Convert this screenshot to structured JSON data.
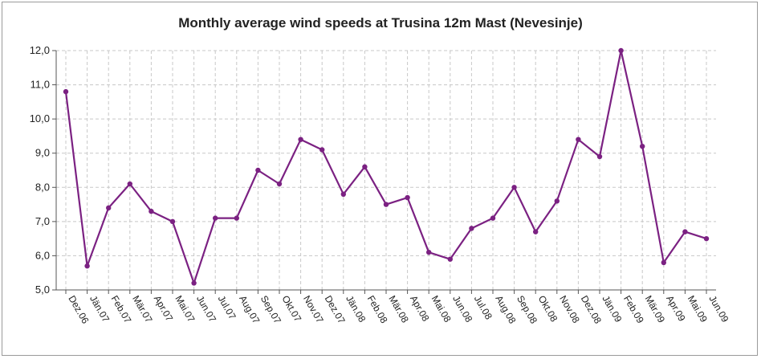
{
  "chart_data": {
    "type": "line",
    "title": "Monthly average wind speeds at Trusina 12m Mast (Nevesinje)",
    "xlabel": "",
    "ylabel": "",
    "ylim": [
      5.0,
      12.0
    ],
    "yticks": [
      "5,0",
      "6,0",
      "7,0",
      "8,0",
      "9,0",
      "10,0",
      "11,0",
      "12,0"
    ],
    "categories": [
      "Dez.06",
      "Jän.07",
      "Feb.07",
      "Mär.07",
      "Apr.07",
      "Mai.07",
      "Jun.07",
      "Jul.07",
      "Aug.07",
      "Sep.07",
      "Okt.07",
      "Nov.07",
      "Dez.07",
      "Jän.08",
      "Feb.08",
      "Mär.08",
      "Apr.08",
      "Mai.08",
      "Jun.08",
      "Jul.08",
      "Aug.08",
      "Sep.08",
      "Okt.08",
      "Nov.08",
      "Dez.08",
      "Jän.09",
      "Feb.09",
      "Mär.09",
      "Apr.09",
      "Mai.09",
      "Jun.09"
    ],
    "series": [
      {
        "values": [
          10.8,
          5.7,
          7.4,
          8.1,
          7.3,
          7.0,
          5.2,
          7.1,
          7.1,
          8.5,
          8.1,
          9.4,
          9.1,
          7.8,
          8.6,
          7.5,
          7.7,
          6.1,
          5.9,
          6.8,
          7.1,
          8.0,
          6.7,
          7.6,
          9.4,
          8.9,
          12.0,
          9.2,
          5.8,
          6.7,
          6.5
        ],
        "color": "#7b2182"
      }
    ],
    "grid": true,
    "grid_style": "dashed",
    "legend": "none"
  }
}
